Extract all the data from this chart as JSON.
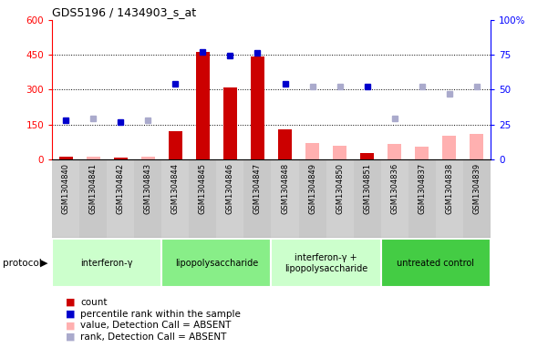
{
  "title": "GDS5196 / 1434903_s_at",
  "samples": [
    "GSM1304840",
    "GSM1304841",
    "GSM1304842",
    "GSM1304843",
    "GSM1304844",
    "GSM1304845",
    "GSM1304846",
    "GSM1304847",
    "GSM1304848",
    "GSM1304849",
    "GSM1304850",
    "GSM1304851",
    "GSM1304836",
    "GSM1304837",
    "GSM1304838",
    "GSM1304839"
  ],
  "count_present": [
    10,
    0,
    8,
    0,
    120,
    460,
    310,
    440,
    130,
    0,
    0,
    25,
    0,
    0,
    0,
    0
  ],
  "count_absent": [
    0,
    12,
    0,
    12,
    0,
    0,
    0,
    0,
    0,
    70,
    60,
    0,
    65,
    55,
    100,
    110
  ],
  "rank_present": [
    28,
    0,
    27,
    0,
    54,
    77,
    74,
    76,
    54,
    0,
    0,
    52,
    0,
    0,
    0,
    0
  ],
  "rank_absent": [
    0,
    29,
    0,
    28,
    0,
    0,
    0,
    0,
    0,
    52,
    52,
    0,
    29,
    52,
    47,
    52
  ],
  "protocols": [
    {
      "label": "interferon-γ",
      "start": 0,
      "end": 4,
      "color": "#ccffcc"
    },
    {
      "label": "lipopolysaccharide",
      "start": 4,
      "end": 8,
      "color": "#88ee88"
    },
    {
      "label": "interferon-γ +\nlipopolysaccharide",
      "start": 8,
      "end": 12,
      "color": "#ccffcc"
    },
    {
      "label": "untreated control",
      "start": 12,
      "end": 16,
      "color": "#44cc44"
    }
  ],
  "ylim_left": [
    0,
    600
  ],
  "ylim_right": [
    0,
    100
  ],
  "yticks_left": [
    0,
    150,
    300,
    450,
    600
  ],
  "yticks_right": [
    0,
    25,
    50,
    75,
    100
  ],
  "color_count_present": "#cc0000",
  "color_count_absent": "#ffb0b0",
  "color_rank_present": "#0000cc",
  "color_rank_absent": "#aaaacc",
  "bg_color_plot": "#ffffff",
  "bg_color_samples": "#d8d8d8"
}
